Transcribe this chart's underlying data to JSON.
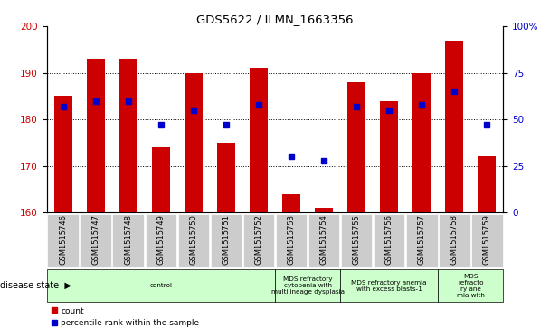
{
  "title": "GDS5622 / ILMN_1663356",
  "samples": [
    "GSM1515746",
    "GSM1515747",
    "GSM1515748",
    "GSM1515749",
    "GSM1515750",
    "GSM1515751",
    "GSM1515752",
    "GSM1515753",
    "GSM1515754",
    "GSM1515755",
    "GSM1515756",
    "GSM1515757",
    "GSM1515758",
    "GSM1515759"
  ],
  "counts": [
    185,
    193,
    193,
    174,
    190,
    175,
    191,
    164,
    161,
    188,
    184,
    190,
    197,
    172
  ],
  "percentiles": [
    57,
    60,
    60,
    47,
    55,
    47,
    58,
    30,
    28,
    57,
    55,
    58,
    65,
    47
  ],
  "ylim_left": [
    160,
    200
  ],
  "ylim_right": [
    0,
    100
  ],
  "yticks_left": [
    160,
    170,
    180,
    190,
    200
  ],
  "yticks_right": [
    0,
    25,
    50,
    75,
    100
  ],
  "bar_color": "#cc0000",
  "dot_color": "#0000cc",
  "bar_bottom": 160,
  "disease_groups": [
    {
      "label": "control",
      "start": 0,
      "end": 7
    },
    {
      "label": "MDS refractory\ncytopenia with\nmultilineage dysplasia",
      "start": 7,
      "end": 9
    },
    {
      "label": "MDS refractory anemia\nwith excess blasts-1",
      "start": 9,
      "end": 12
    },
    {
      "label": "MDS\nrefracto\nry ane\nmia with",
      "start": 12,
      "end": 14
    }
  ],
  "xlabel_label": "disease state",
  "legend_count": "count",
  "legend_pct": "percentile rank within the sample",
  "bg_color": "#ffffff",
  "tick_label_bg": "#cccccc",
  "group_bg": "#ccffcc",
  "grid_color": "#000000",
  "bar_width": 0.55
}
